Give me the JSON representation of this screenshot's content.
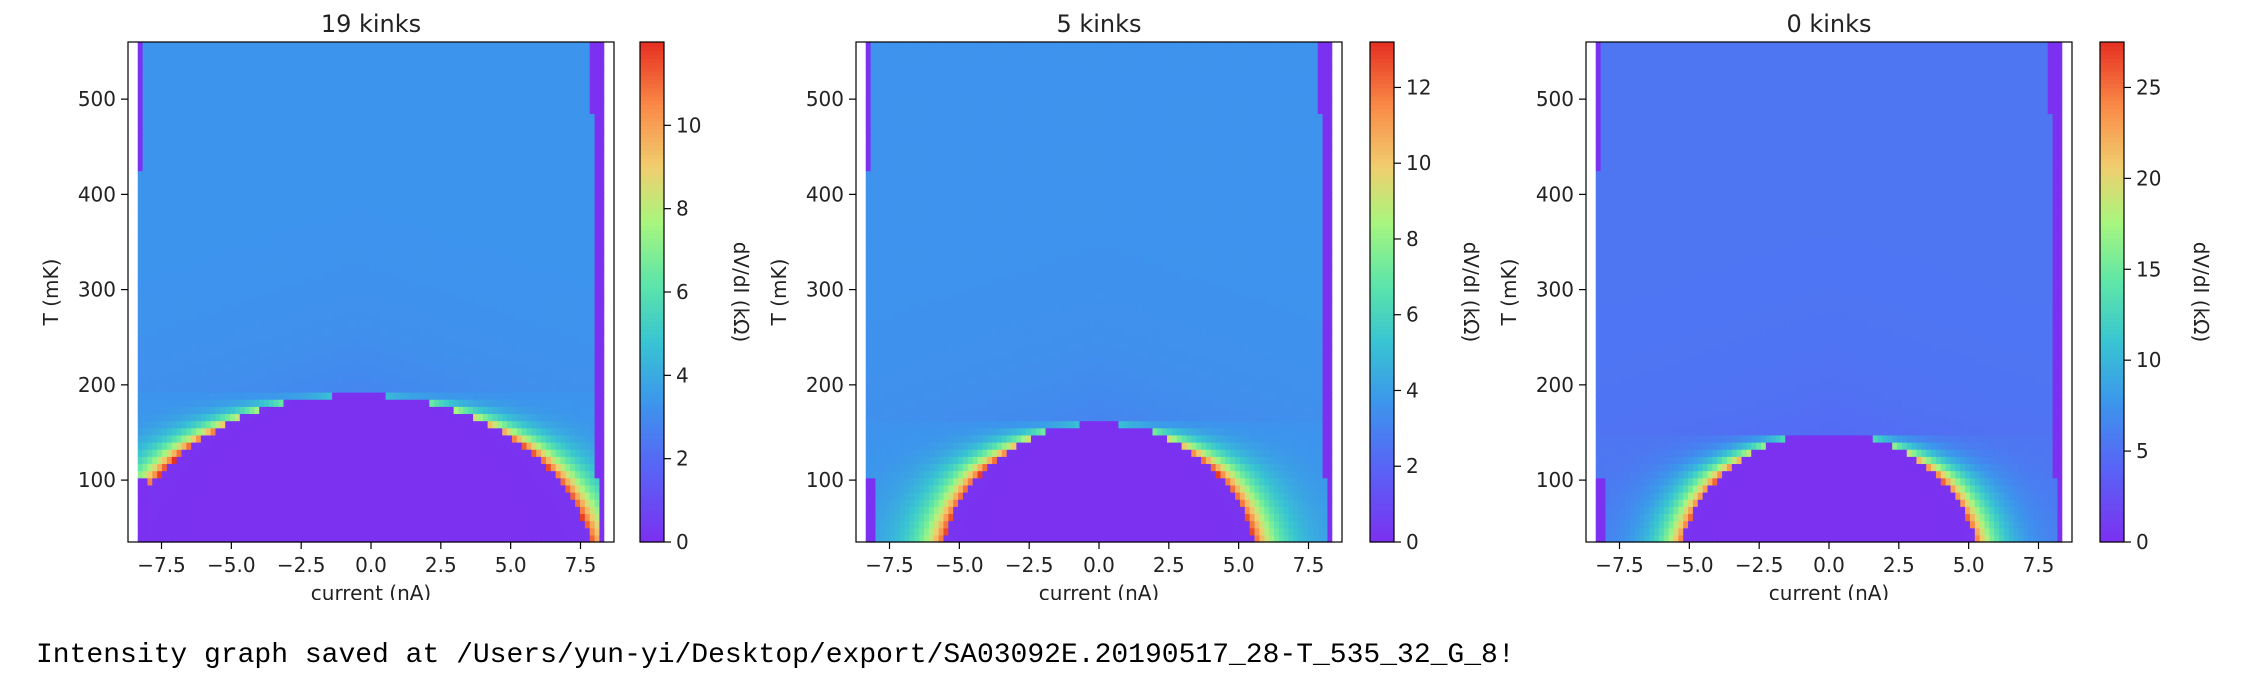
{
  "chart_data": [
    {
      "type": "heatmap",
      "title": "19 kinks",
      "xlabel": "current (nA)",
      "ylabel": "T (mK)",
      "colorbar_label": "dV/dI (kΩ)",
      "xlim": [
        -8.7,
        8.7
      ],
      "ylim": [
        35,
        560
      ],
      "x_ticks": [
        -7.5,
        -5.0,
        -2.5,
        0.0,
        2.5,
        5.0,
        7.5
      ],
      "x_tick_labels": [
        "−7.5",
        "−5.0",
        "−2.5",
        "0.0",
        "2.5",
        "5.0",
        "7.5"
      ],
      "y_ticks": [
        100,
        200,
        300,
        400,
        500
      ],
      "y_tick_labels": [
        "100",
        "200",
        "300",
        "400",
        "500"
      ],
      "colorbar_range": [
        0,
        12
      ],
      "colorbar_ticks": [
        0,
        2,
        4,
        6,
        8,
        10
      ],
      "colormap": "rainbow",
      "features": {
        "sweep_edge_current": [
          -8.3,
          8.0
        ],
        "superconducting_dome": {
          "center_current": -0.5,
          "half_width_current": 8.5,
          "Tc_mK": 190
        },
        "normal_state_value_kohm": 3.3,
        "peak_value_kohm": 12
      }
    },
    {
      "type": "heatmap",
      "title": "5 kinks",
      "xlabel": "current (nA)",
      "ylabel": "T (mK)",
      "colorbar_label": "dV/dI (kΩ)",
      "xlim": [
        -8.7,
        8.7
      ],
      "ylim": [
        35,
        560
      ],
      "x_ticks": [
        -7.5,
        -5.0,
        -2.5,
        0.0,
        2.5,
        5.0,
        7.5
      ],
      "x_tick_labels": [
        "−7.5",
        "−5.0",
        "−2.5",
        "0.0",
        "2.5",
        "5.0",
        "7.5"
      ],
      "y_ticks": [
        100,
        200,
        300,
        400,
        500
      ],
      "y_tick_labels": [
        "100",
        "200",
        "300",
        "400",
        "500"
      ],
      "colorbar_range": [
        0,
        13.2
      ],
      "colorbar_ticks": [
        0,
        2,
        4,
        6,
        8,
        10,
        12
      ],
      "colormap": "rainbow",
      "features": {
        "sweep_edge_current": [
          -8.3,
          8.0
        ],
        "superconducting_dome": {
          "center_current": 0.0,
          "half_width_current": 5.7,
          "Tc_mK": 160
        },
        "normal_state_value_kohm": 3.6,
        "peak_value_kohm": 13
      }
    },
    {
      "type": "heatmap",
      "title": "0 kinks",
      "xlabel": "current (nA)",
      "ylabel": "T (mK)",
      "colorbar_label": "dV/dI (kΩ)",
      "xlim": [
        -8.7,
        8.7
      ],
      "ylim": [
        35,
        560
      ],
      "x_ticks": [
        -7.5,
        -5.0,
        -2.5,
        0.0,
        2.5,
        5.0,
        7.5
      ],
      "x_tick_labels": [
        "−7.5",
        "−5.0",
        "−2.5",
        "0.0",
        "2.5",
        "5.0",
        "7.5"
      ],
      "y_ticks": [
        100,
        200,
        300,
        400,
        500
      ],
      "y_tick_labels": [
        "100",
        "200",
        "300",
        "400",
        "500"
      ],
      "colorbar_range": [
        0,
        27.5
      ],
      "colorbar_ticks": [
        0,
        5,
        10,
        15,
        20,
        25
      ],
      "colormap": "rainbow",
      "features": {
        "sweep_edge_current": [
          -8.3,
          8.0
        ],
        "superconducting_dome": {
          "center_current": 0.0,
          "half_width_current": 5.4,
          "Tc_mK": 150
        },
        "normal_state_value_kohm": 5.4,
        "peak_value_kohm": 26
      }
    }
  ],
  "console_output": "Intensity graph saved at /Users/yun-yi/Desktop/export/SA03092E.20190517_28-T_535_32_G_8!"
}
